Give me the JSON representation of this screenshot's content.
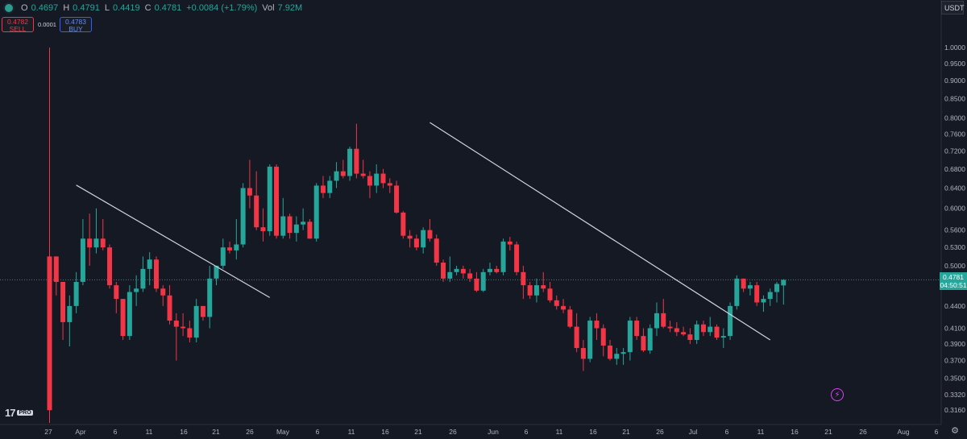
{
  "header": {
    "o_label": "O",
    "o_value": "0.4697",
    "h_label": "H",
    "h_value": "0.4791",
    "l_label": "L",
    "l_value": "0.4419",
    "c_label": "C",
    "c_value": "0.4781",
    "change": "+0.0084 (+1.79%)",
    "vol_label": "Vol",
    "vol_value": "7.92M"
  },
  "trade": {
    "sell_price": "0.4782",
    "sell_label": "SELL",
    "spread": "0.0001",
    "buy_price": "0.4783",
    "buy_label": "BUY"
  },
  "currency": "USDT",
  "logo_text": "17",
  "logo_badge": "PRO",
  "last_price": {
    "value": "0.4781",
    "countdown": "04:50:51"
  },
  "colors": {
    "up": "#26a69a",
    "down": "#f23645",
    "background": "#151924",
    "trendline": "#d1d4dc"
  },
  "chart_data": {
    "type": "candlestick",
    "interval": "1D",
    "y_scale": "log",
    "ylim": [
      0.3035,
      1.05
    ],
    "y_ticks": [
      "1.0000",
      "0.9500",
      "0.9000",
      "0.8500",
      "0.8000",
      "0.7600",
      "0.7200",
      "0.6800",
      "0.6400",
      "0.6000",
      "0.5600",
      "0.5300",
      "0.5000",
      "0.4400",
      "0.4100",
      "0.3900",
      "0.3700",
      "0.3500",
      "0.3320",
      "0.3160"
    ],
    "x_ticks": [
      "27",
      "Apr",
      "6",
      "11",
      "16",
      "21",
      "26",
      "May",
      "6",
      "11",
      "16",
      "21",
      "26",
      "Jun",
      "6",
      "11",
      "16",
      "21",
      "26",
      "Jul",
      "6",
      "11",
      "16",
      "21",
      "26",
      "Aug",
      "6"
    ],
    "candles": [
      [
        0.515,
        0.9999,
        0.3035,
        0.316
      ],
      [
        0.515,
        0.515,
        0.455,
        0.475
      ],
      [
        0.475,
        0.475,
        0.395,
        0.418
      ],
      [
        0.418,
        0.455,
        0.387,
        0.44
      ],
      [
        0.44,
        0.49,
        0.43,
        0.475
      ],
      [
        0.475,
        0.58,
        0.47,
        0.545
      ],
      [
        0.545,
        0.59,
        0.5,
        0.53
      ],
      [
        0.53,
        0.6,
        0.52,
        0.545
      ],
      [
        0.545,
        0.58,
        0.525,
        0.53
      ],
      [
        0.53,
        0.535,
        0.465,
        0.47
      ],
      [
        0.47,
        0.475,
        0.43,
        0.45
      ],
      [
        0.45,
        0.45,
        0.395,
        0.4
      ],
      [
        0.4,
        0.47,
        0.395,
        0.46
      ],
      [
        0.46,
        0.485,
        0.44,
        0.465
      ],
      [
        0.465,
        0.515,
        0.46,
        0.495
      ],
      [
        0.495,
        0.522,
        0.47,
        0.51
      ],
      [
        0.51,
        0.515,
        0.46,
        0.465
      ],
      [
        0.465,
        0.47,
        0.44,
        0.455
      ],
      [
        0.455,
        0.47,
        0.415,
        0.42
      ],
      [
        0.42,
        0.43,
        0.37,
        0.412
      ],
      [
        0.412,
        0.43,
        0.4,
        0.41
      ],
      [
        0.41,
        0.42,
        0.392,
        0.398
      ],
      [
        0.398,
        0.45,
        0.392,
        0.44
      ],
      [
        0.44,
        0.44,
        0.42,
        0.425
      ],
      [
        0.425,
        0.5,
        0.41,
        0.48
      ],
      [
        0.48,
        0.5,
        0.47,
        0.5
      ],
      [
        0.5,
        0.545,
        0.495,
        0.53
      ],
      [
        0.53,
        0.54,
        0.52,
        0.525
      ],
      [
        0.525,
        0.58,
        0.51,
        0.535
      ],
      [
        0.535,
        0.65,
        0.53,
        0.64
      ],
      [
        0.64,
        0.7,
        0.6,
        0.625
      ],
      [
        0.625,
        0.675,
        0.56,
        0.565
      ],
      [
        0.565,
        0.6,
        0.54,
        0.558
      ],
      [
        0.558,
        0.69,
        0.55,
        0.685
      ],
      [
        0.685,
        0.69,
        0.545,
        0.55
      ],
      [
        0.55,
        0.62,
        0.545,
        0.585
      ],
      [
        0.585,
        0.59,
        0.545,
        0.555
      ],
      [
        0.555,
        0.585,
        0.54,
        0.57
      ],
      [
        0.57,
        0.6,
        0.56,
        0.575
      ],
      [
        0.575,
        0.58,
        0.545,
        0.545
      ],
      [
        0.545,
        0.65,
        0.54,
        0.645
      ],
      [
        0.645,
        0.665,
        0.62,
        0.63
      ],
      [
        0.63,
        0.665,
        0.62,
        0.655
      ],
      [
        0.655,
        0.695,
        0.64,
        0.675
      ],
      [
        0.675,
        0.7,
        0.66,
        0.665
      ],
      [
        0.665,
        0.73,
        0.655,
        0.725
      ],
      [
        0.725,
        0.785,
        0.66,
        0.67
      ],
      [
        0.67,
        0.7,
        0.66,
        0.665
      ],
      [
        0.665,
        0.675,
        0.62,
        0.645
      ],
      [
        0.645,
        0.69,
        0.63,
        0.67
      ],
      [
        0.67,
        0.68,
        0.64,
        0.65
      ],
      [
        0.65,
        0.66,
        0.63,
        0.645
      ],
      [
        0.645,
        0.655,
        0.59,
        0.592
      ],
      [
        0.592,
        0.595,
        0.545,
        0.55
      ],
      [
        0.55,
        0.56,
        0.53,
        0.545
      ],
      [
        0.545,
        0.552,
        0.525,
        0.53
      ],
      [
        0.53,
        0.565,
        0.52,
        0.56
      ],
      [
        0.56,
        0.58,
        0.54,
        0.545
      ],
      [
        0.545,
        0.552,
        0.5,
        0.505
      ],
      [
        0.505,
        0.51,
        0.475,
        0.48
      ],
      [
        0.48,
        0.515,
        0.475,
        0.49
      ],
      [
        0.49,
        0.5,
        0.485,
        0.495
      ],
      [
        0.495,
        0.5,
        0.48,
        0.488
      ],
      [
        0.488,
        0.495,
        0.475,
        0.48
      ],
      [
        0.48,
        0.49,
        0.46,
        0.462
      ],
      [
        0.462,
        0.495,
        0.46,
        0.49
      ],
      [
        0.49,
        0.505,
        0.485,
        0.495
      ],
      [
        0.495,
        0.5,
        0.488,
        0.49
      ],
      [
        0.49,
        0.545,
        0.485,
        0.54
      ],
      [
        0.54,
        0.548,
        0.525,
        0.535
      ],
      [
        0.535,
        0.54,
        0.485,
        0.49
      ],
      [
        0.49,
        0.5,
        0.45,
        0.47
      ],
      [
        0.47,
        0.475,
        0.45,
        0.455
      ],
      [
        0.455,
        0.48,
        0.445,
        0.47
      ],
      [
        0.47,
        0.49,
        0.46,
        0.465
      ],
      [
        0.465,
        0.475,
        0.445,
        0.448
      ],
      [
        0.448,
        0.455,
        0.435,
        0.44
      ],
      [
        0.44,
        0.45,
        0.43,
        0.435
      ],
      [
        0.435,
        0.44,
        0.41,
        0.412
      ],
      [
        0.412,
        0.43,
        0.38,
        0.385
      ],
      [
        0.385,
        0.395,
        0.358,
        0.372
      ],
      [
        0.372,
        0.425,
        0.368,
        0.42
      ],
      [
        0.42,
        0.43,
        0.395,
        0.41
      ],
      [
        0.41,
        0.415,
        0.375,
        0.388
      ],
      [
        0.388,
        0.395,
        0.37,
        0.372
      ],
      [
        0.372,
        0.385,
        0.365,
        0.378
      ],
      [
        0.378,
        0.385,
        0.365,
        0.38
      ],
      [
        0.38,
        0.425,
        0.37,
        0.42
      ],
      [
        0.42,
        0.425,
        0.395,
        0.4
      ],
      [
        0.4,
        0.41,
        0.38,
        0.382
      ],
      [
        0.382,
        0.415,
        0.378,
        0.41
      ],
      [
        0.41,
        0.445,
        0.4,
        0.43
      ],
      [
        0.43,
        0.45,
        0.41,
        0.412
      ],
      [
        0.412,
        0.42,
        0.405,
        0.41
      ],
      [
        0.41,
        0.418,
        0.4,
        0.405
      ],
      [
        0.405,
        0.412,
        0.4,
        0.402
      ],
      [
        0.402,
        0.41,
        0.39,
        0.395
      ],
      [
        0.395,
        0.42,
        0.39,
        0.415
      ],
      [
        0.415,
        0.42,
        0.4,
        0.405
      ],
      [
        0.405,
        0.425,
        0.4,
        0.412
      ],
      [
        0.412,
        0.415,
        0.395,
        0.398
      ],
      [
        0.398,
        0.41,
        0.385,
        0.4
      ],
      [
        0.4,
        0.445,
        0.395,
        0.44
      ],
      [
        0.44,
        0.485,
        0.435,
        0.48
      ],
      [
        0.48,
        0.48,
        0.46,
        0.465
      ],
      [
        0.465,
        0.475,
        0.455,
        0.47
      ],
      [
        0.47,
        0.475,
        0.44,
        0.445
      ],
      [
        0.445,
        0.455,
        0.432,
        0.45
      ],
      [
        0.45,
        0.465,
        0.44,
        0.46
      ],
      [
        0.46,
        0.475,
        0.445,
        0.472
      ],
      [
        0.4697,
        0.4791,
        0.4419,
        0.4781
      ]
    ],
    "trendlines": [
      {
        "start_candle": 4,
        "start_price": 0.646,
        "end_candle": 33,
        "end_price": 0.452
      },
      {
        "start_candle": 57,
        "start_price": 0.788,
        "end_candle": 108,
        "end_price": 0.395
      }
    ],
    "current_price_line": 0.4781
  }
}
